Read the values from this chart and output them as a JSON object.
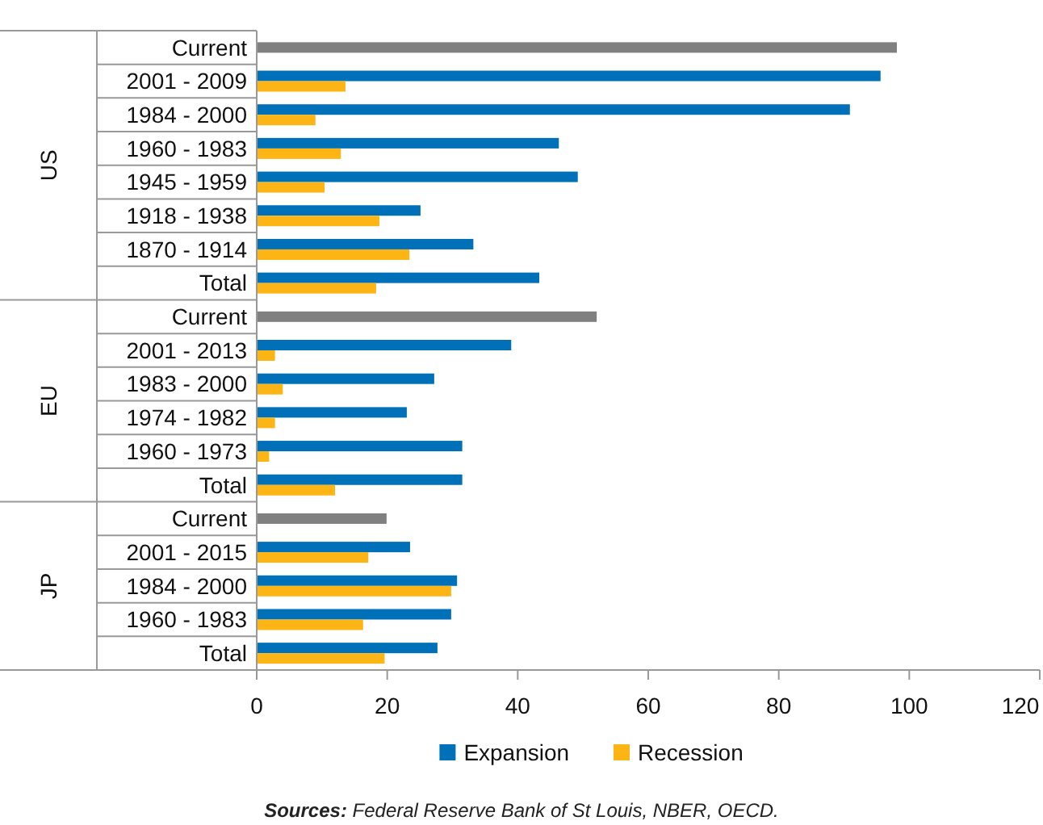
{
  "chart_data": {
    "type": "bar",
    "orientation": "horizontal",
    "categories": [
      "Current",
      "2001 - 2009",
      "1984 - 2000",
      "1960 - 1983",
      "1945 - 1959",
      "1918 - 1938",
      "1870 - 1914",
      "Total",
      "Current",
      "2001 - 2013",
      "1983 - 2000",
      "1974 - 1982",
      "1960 - 1973",
      "Total",
      "Current",
      "2001 - 2015",
      "1984 - 2000",
      "1960 - 1983",
      "Total"
    ],
    "series": [
      {
        "name": "Expansion",
        "color": "#0070b8",
        "values": [
          null,
          95.6,
          90.9,
          46.3,
          49.2,
          25.1,
          33.2,
          43.3,
          null,
          39.0,
          27.2,
          23.0,
          31.5,
          31.5,
          null,
          23.5,
          30.7,
          29.8,
          27.7
        ]
      },
      {
        "name": "Recession",
        "color": "#fdb515",
        "values": [
          null,
          13.6,
          9.0,
          12.9,
          10.4,
          18.8,
          23.4,
          18.3,
          null,
          2.8,
          4.0,
          2.8,
          1.9,
          12.0,
          null,
          17.1,
          29.8,
          16.3,
          19.6
        ]
      },
      {
        "color": "#808080",
        "values": [
          98.1,
          null,
          null,
          null,
          null,
          null,
          null,
          null,
          52.1,
          null,
          null,
          null,
          null,
          null,
          19.9,
          null,
          null,
          null,
          null
        ]
      }
    ],
    "xlim": [
      0,
      120
    ],
    "xticks": [
      0,
      20,
      40,
      60,
      80,
      100,
      120
    ],
    "legend": "bottom",
    "grid": false,
    "annotations": [
      "US",
      "EU",
      "JP",
      "Sources: Federal Reserve Bank of St Louis, NBER, OECD."
    ]
  }
}
